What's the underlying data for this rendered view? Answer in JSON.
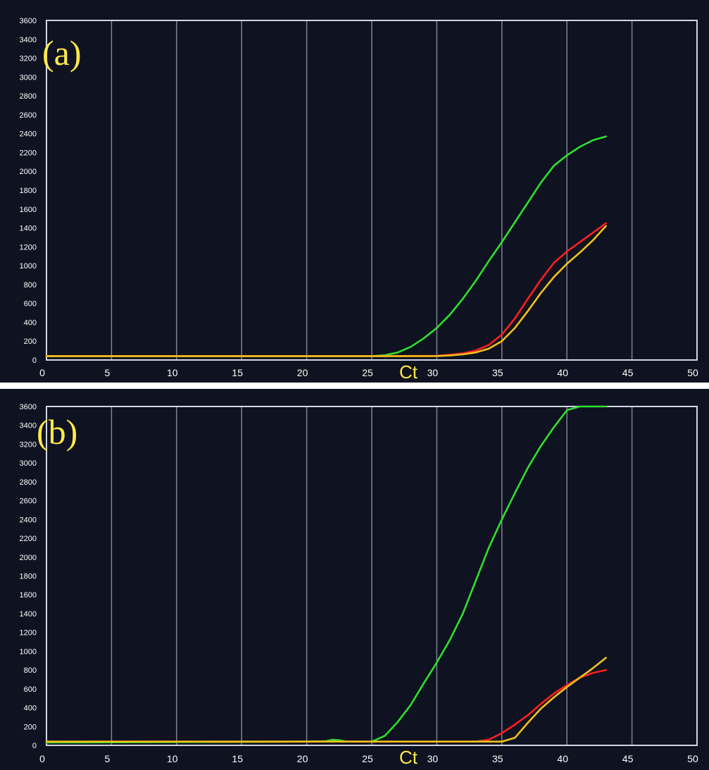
{
  "chart_data": [
    {
      "type": "line",
      "panel_label": "(a)",
      "xlabel": "Ct",
      "ylabel": "",
      "xlim": [
        0,
        50
      ],
      "ylim": [
        0,
        3600
      ],
      "xticks": [
        0,
        5,
        10,
        15,
        20,
        25,
        30,
        35,
        40,
        45,
        50
      ],
      "yticks": [
        0,
        200,
        400,
        600,
        800,
        1000,
        1200,
        1400,
        1600,
        1800,
        2000,
        2200,
        2400,
        2600,
        2800,
        3000,
        3200,
        3400,
        3600
      ],
      "grid": true,
      "series": [
        {
          "color": "#2ee02e",
          "x": [
            0,
            10,
            20,
            25,
            26,
            27,
            28,
            29,
            30,
            31,
            32,
            33,
            34,
            35,
            36,
            37,
            38,
            39,
            40,
            41,
            42,
            43
          ],
          "y": [
            40,
            40,
            40,
            40,
            50,
            80,
            140,
            230,
            340,
            480,
            650,
            840,
            1050,
            1250,
            1460,
            1670,
            1880,
            2060,
            2170,
            2260,
            2330,
            2370
          ]
        },
        {
          "color": "#ff1f1f",
          "x": [
            0,
            25,
            30,
            31,
            32,
            33,
            34,
            35,
            36,
            37,
            38,
            39,
            40,
            41,
            42,
            43
          ],
          "y": [
            40,
            40,
            45,
            55,
            70,
            100,
            160,
            270,
            440,
            650,
            850,
            1030,
            1150,
            1250,
            1350,
            1450
          ]
        },
        {
          "color": "#f2c21a",
          "x": [
            0,
            25,
            30,
            31,
            32,
            33,
            34,
            35,
            36,
            37,
            38,
            39,
            40,
            41,
            42,
            43
          ],
          "y": [
            40,
            40,
            42,
            48,
            60,
            80,
            120,
            200,
            340,
            520,
            710,
            880,
            1020,
            1140,
            1270,
            1420
          ]
        }
      ]
    },
    {
      "type": "line",
      "panel_label": "(b)",
      "xlabel": "Ct",
      "ylabel": "",
      "xlim": [
        0,
        50
      ],
      "ylim": [
        0,
        3600
      ],
      "xticks": [
        0,
        5,
        10,
        15,
        20,
        25,
        30,
        35,
        40,
        45,
        50
      ],
      "yticks": [
        0,
        200,
        400,
        600,
        800,
        1000,
        1200,
        1400,
        1600,
        1800,
        2000,
        2200,
        2400,
        2600,
        2800,
        3000,
        3200,
        3400,
        3600
      ],
      "grid": true,
      "series": [
        {
          "color": "#2ee02e",
          "x": [
            0,
            20,
            21.5,
            22,
            22.5,
            23,
            25,
            26,
            27,
            28,
            29,
            30,
            31,
            32,
            33,
            34,
            35,
            36,
            37,
            38,
            39,
            40,
            41,
            42,
            43
          ],
          "y": [
            30,
            40,
            45,
            60,
            55,
            40,
            40,
            100,
            250,
            430,
            660,
            880,
            1120,
            1400,
            1750,
            2100,
            2400,
            2680,
            2950,
            3180,
            3380,
            3560,
            3600,
            3600,
            3600
          ]
        },
        {
          "color": "#ff1f1f",
          "x": [
            0,
            33,
            34,
            35,
            36,
            37,
            38,
            39,
            40,
            41,
            42,
            43
          ],
          "y": [
            40,
            40,
            60,
            130,
            220,
            320,
            440,
            550,
            640,
            720,
            770,
            800
          ]
        },
        {
          "color": "#f2c21a",
          "x": [
            0,
            35,
            36,
            37,
            38,
            39,
            40,
            41,
            42,
            43
          ],
          "y": [
            40,
            40,
            80,
            240,
            390,
            510,
            620,
            720,
            820,
            930
          ]
        }
      ]
    }
  ]
}
